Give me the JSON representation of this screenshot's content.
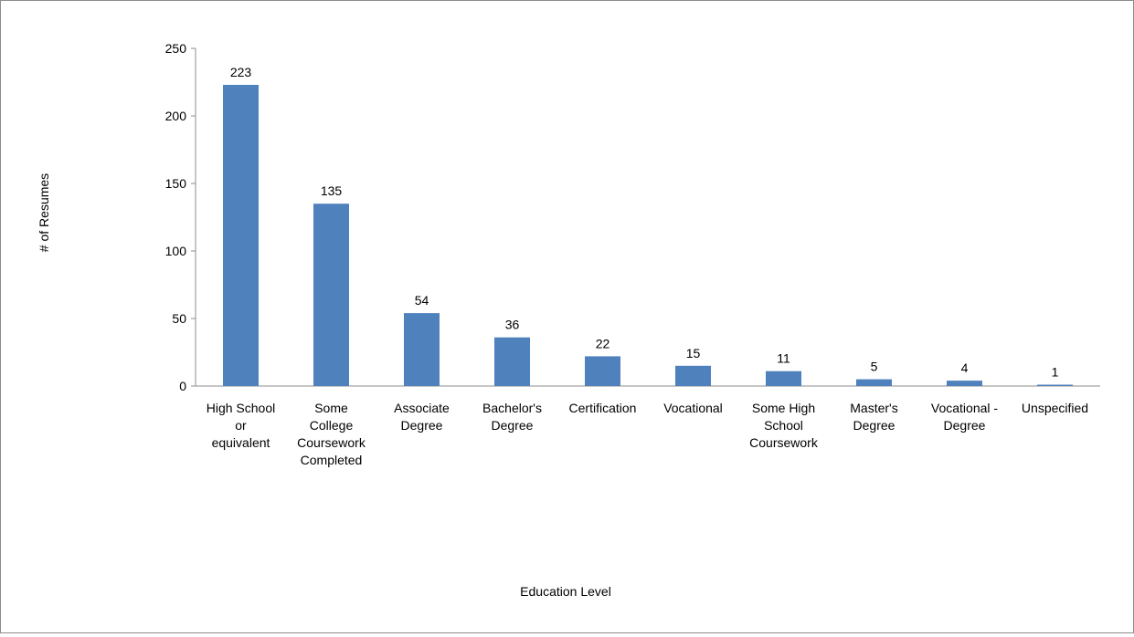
{
  "chart_data": {
    "type": "bar",
    "title": "",
    "xlabel": "Education Level",
    "ylabel": "# of Resumes",
    "ylim": [
      0,
      250
    ],
    "yticks": [
      0,
      50,
      100,
      150,
      200,
      250
    ],
    "grid": false,
    "legend": "none",
    "bar_color": "#4f81bd",
    "categories": [
      [
        "High School",
        "or",
        "equivalent"
      ],
      [
        "Some",
        "College",
        "Coursework",
        "Completed"
      ],
      [
        "Associate",
        "Degree"
      ],
      [
        "Bachelor's",
        "Degree"
      ],
      [
        "Certification"
      ],
      [
        "Vocational"
      ],
      [
        "Some High",
        "School",
        "Coursework"
      ],
      [
        "Master's",
        "Degree"
      ],
      [
        "Vocational -",
        "Degree"
      ],
      [
        "Unspecified"
      ]
    ],
    "values": [
      223,
      135,
      54,
      36,
      22,
      15,
      11,
      5,
      4,
      1
    ],
    "data_labels": [
      "223",
      "135",
      "54",
      "36",
      "22",
      "15",
      "11",
      "5",
      "4",
      "1"
    ]
  }
}
